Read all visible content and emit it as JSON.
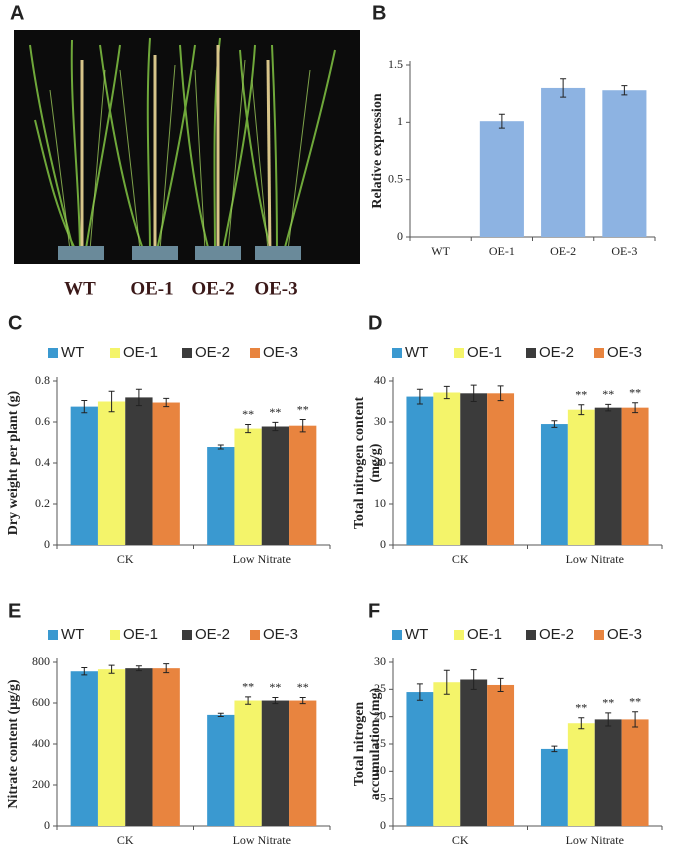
{
  "photo": {
    "panel_label": "A",
    "labels": [
      "WT",
      "OE-1",
      "OE-2",
      "OE-3"
    ]
  },
  "chart_data": [
    {
      "type": "bar",
      "panel_label": "B",
      "ylabel": [
        "Relative expression"
      ],
      "categories": [
        "WT",
        "OE-1",
        "OE-2",
        "OE-3"
      ],
      "values": [
        0,
        1.01,
        1.3,
        1.28
      ],
      "errors": [
        0,
        0.06,
        0.08,
        0.04
      ],
      "color": "#8db3e2",
      "ylim": [
        0,
        1.5
      ],
      "yticks": [
        0,
        0.5,
        1,
        1.5
      ]
    },
    {
      "type": "grouped_bar",
      "panel_label": "C",
      "ylabel": [
        "Dry weight per plant (g)"
      ],
      "categories": [
        "CK",
        "Low Nitrate"
      ],
      "ylim": [
        0,
        0.8
      ],
      "yticks": [
        0,
        0.2,
        0.4,
        0.6,
        0.8
      ],
      "series": [
        {
          "name": "WT",
          "color": "#3a99d0",
          "values": [
            0.675,
            0.478
          ],
          "errors": [
            0.03,
            0.01
          ],
          "significance": [
            null,
            null
          ]
        },
        {
          "name": "OE-1",
          "color": "#f4f46a",
          "values": [
            0.7,
            0.568
          ],
          "errors": [
            0.05,
            0.02
          ],
          "significance": [
            null,
            "**"
          ]
        },
        {
          "name": "OE-2",
          "color": "#3b3b3b",
          "values": [
            0.72,
            0.578
          ],
          "errors": [
            0.04,
            0.02
          ],
          "significance": [
            null,
            "**"
          ]
        },
        {
          "name": "OE-3",
          "color": "#e8843f",
          "values": [
            0.695,
            0.582
          ],
          "errors": [
            0.02,
            0.03
          ],
          "significance": [
            null,
            "**"
          ]
        }
      ]
    },
    {
      "type": "grouped_bar",
      "panel_label": "D",
      "ylabel": [
        "Total nitrogen content",
        "(mg/g)"
      ],
      "categories": [
        "CK",
        "Low Nitrate"
      ],
      "ylim": [
        0,
        40
      ],
      "yticks": [
        0,
        10,
        20,
        30,
        40
      ],
      "series": [
        {
          "name": "WT",
          "color": "#3a99d0",
          "values": [
            36.2,
            29.5
          ],
          "errors": [
            1.8,
            0.8
          ],
          "significance": [
            null,
            null
          ]
        },
        {
          "name": "OE-1",
          "color": "#f4f46a",
          "values": [
            37.2,
            33
          ],
          "errors": [
            1.5,
            1.2
          ],
          "significance": [
            null,
            "**"
          ]
        },
        {
          "name": "OE-2",
          "color": "#3b3b3b",
          "values": [
            37,
            33.5
          ],
          "errors": [
            2,
            0.8
          ],
          "significance": [
            null,
            "**"
          ]
        },
        {
          "name": "OE-3",
          "color": "#e8843f",
          "values": [
            37,
            33.5
          ],
          "errors": [
            1.8,
            1.2
          ],
          "significance": [
            null,
            "**"
          ]
        }
      ]
    },
    {
      "type": "grouped_bar",
      "panel_label": "E",
      "ylabel": [
        "Nitrate content (μg/g)"
      ],
      "categories": [
        "CK",
        "Low Nitrate"
      ],
      "ylim": [
        0,
        800
      ],
      "yticks": [
        0,
        200,
        400,
        600,
        800
      ],
      "series": [
        {
          "name": "WT",
          "color": "#3a99d0",
          "values": [
            755,
            542
          ],
          "errors": [
            18,
            8
          ],
          "significance": [
            null,
            null
          ]
        },
        {
          "name": "OE-1",
          "color": "#f4f46a",
          "values": [
            765,
            612
          ],
          "errors": [
            20,
            18
          ],
          "significance": [
            null,
            "**"
          ]
        },
        {
          "name": "OE-2",
          "color": "#3b3b3b",
          "values": [
            770,
            612
          ],
          "errors": [
            12,
            15
          ],
          "significance": [
            null,
            "**"
          ]
        },
        {
          "name": "OE-3",
          "color": "#e8843f",
          "values": [
            770,
            612
          ],
          "errors": [
            22,
            15
          ],
          "significance": [
            null,
            "**"
          ]
        }
      ]
    },
    {
      "type": "grouped_bar",
      "panel_label": "F",
      "ylabel": [
        "Total nitrogen",
        "accumulation (mg)"
      ],
      "categories": [
        "CK",
        "Low Nitrate"
      ],
      "ylim": [
        0,
        30
      ],
      "yticks": [
        0,
        5,
        10,
        15,
        20,
        25,
        30
      ],
      "series": [
        {
          "name": "WT",
          "color": "#3a99d0",
          "values": [
            24.5,
            14.1
          ],
          "errors": [
            1.5,
            0.5
          ],
          "significance": [
            null,
            null
          ]
        },
        {
          "name": "OE-1",
          "color": "#f4f46a",
          "values": [
            26.3,
            18.8
          ],
          "errors": [
            2.2,
            1
          ],
          "significance": [
            null,
            "**"
          ]
        },
        {
          "name": "OE-2",
          "color": "#3b3b3b",
          "values": [
            26.8,
            19.5
          ],
          "errors": [
            1.8,
            1.2
          ],
          "significance": [
            null,
            "**"
          ]
        },
        {
          "name": "OE-3",
          "color": "#e8843f",
          "values": [
            25.8,
            19.5
          ],
          "errors": [
            1.2,
            1.4
          ],
          "significance": [
            null,
            "**"
          ]
        }
      ]
    }
  ]
}
